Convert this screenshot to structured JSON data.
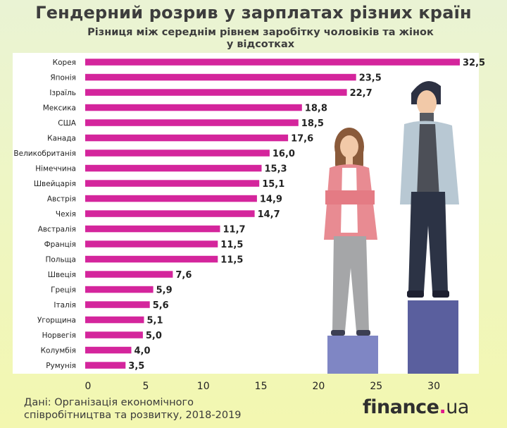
{
  "header": {
    "title": "Гендерний розрив у зарплатах різних країн",
    "subtitle_line1": "Різниця між середнім рівнем заробітку чоловіків та жінок",
    "subtitle_line2": "у відсотках"
  },
  "footer": {
    "source_line1": "Дані: Організація економічного",
    "source_line2": "співробітництва та розвитку, 2018-2019",
    "logo_main": "finance",
    "logo_dot": ".",
    "logo_suffix": "ua"
  },
  "colors": {
    "bar": "#d4259c",
    "label": "#222222",
    "pedestal_low": "#7f86c4",
    "pedestal_high": "#5a5f9e"
  },
  "chart_data": {
    "type": "bar",
    "orientation": "horizontal",
    "title": "Гендерний розрив у зарплатах різних країн",
    "subtitle": "Різниця між середнім рівнем заробітку чоловіків та жінок у відсотках",
    "categories": [
      "Корея",
      "Японія",
      "Ізраїль",
      "Мексика",
      "США",
      "Канада",
      "Великобританія",
      "Німеччина",
      "Швейцарія",
      "Австрія",
      "Чехія",
      "Австралія",
      "Франція",
      "Польща",
      "Швеція",
      "Греція",
      "Італія",
      "Угорщина",
      "Норвегія",
      "Колумбія",
      "Румунія"
    ],
    "values": [
      32.5,
      23.5,
      22.7,
      18.8,
      18.5,
      17.6,
      16.0,
      15.3,
      15.1,
      14.9,
      14.7,
      11.7,
      11.5,
      11.5,
      7.6,
      5.9,
      5.6,
      5.1,
      5.0,
      4.0,
      3.5
    ],
    "value_labels": [
      "32,5",
      "23,5",
      "22,7",
      "18,8",
      "18,5",
      "17,6",
      "16,0",
      "15,3",
      "15,1",
      "14,9",
      "14,7",
      "11,7",
      "11,5",
      "11,5",
      "7,6",
      "5,9",
      "5,6",
      "5,1",
      "5,0",
      "4,0",
      "3,5"
    ],
    "xlim": [
      0,
      33
    ],
    "xticks": [
      0,
      5,
      10,
      15,
      20,
      25,
      30
    ],
    "xlabel": "",
    "ylabel": "",
    "grid": false,
    "legend": "none"
  }
}
